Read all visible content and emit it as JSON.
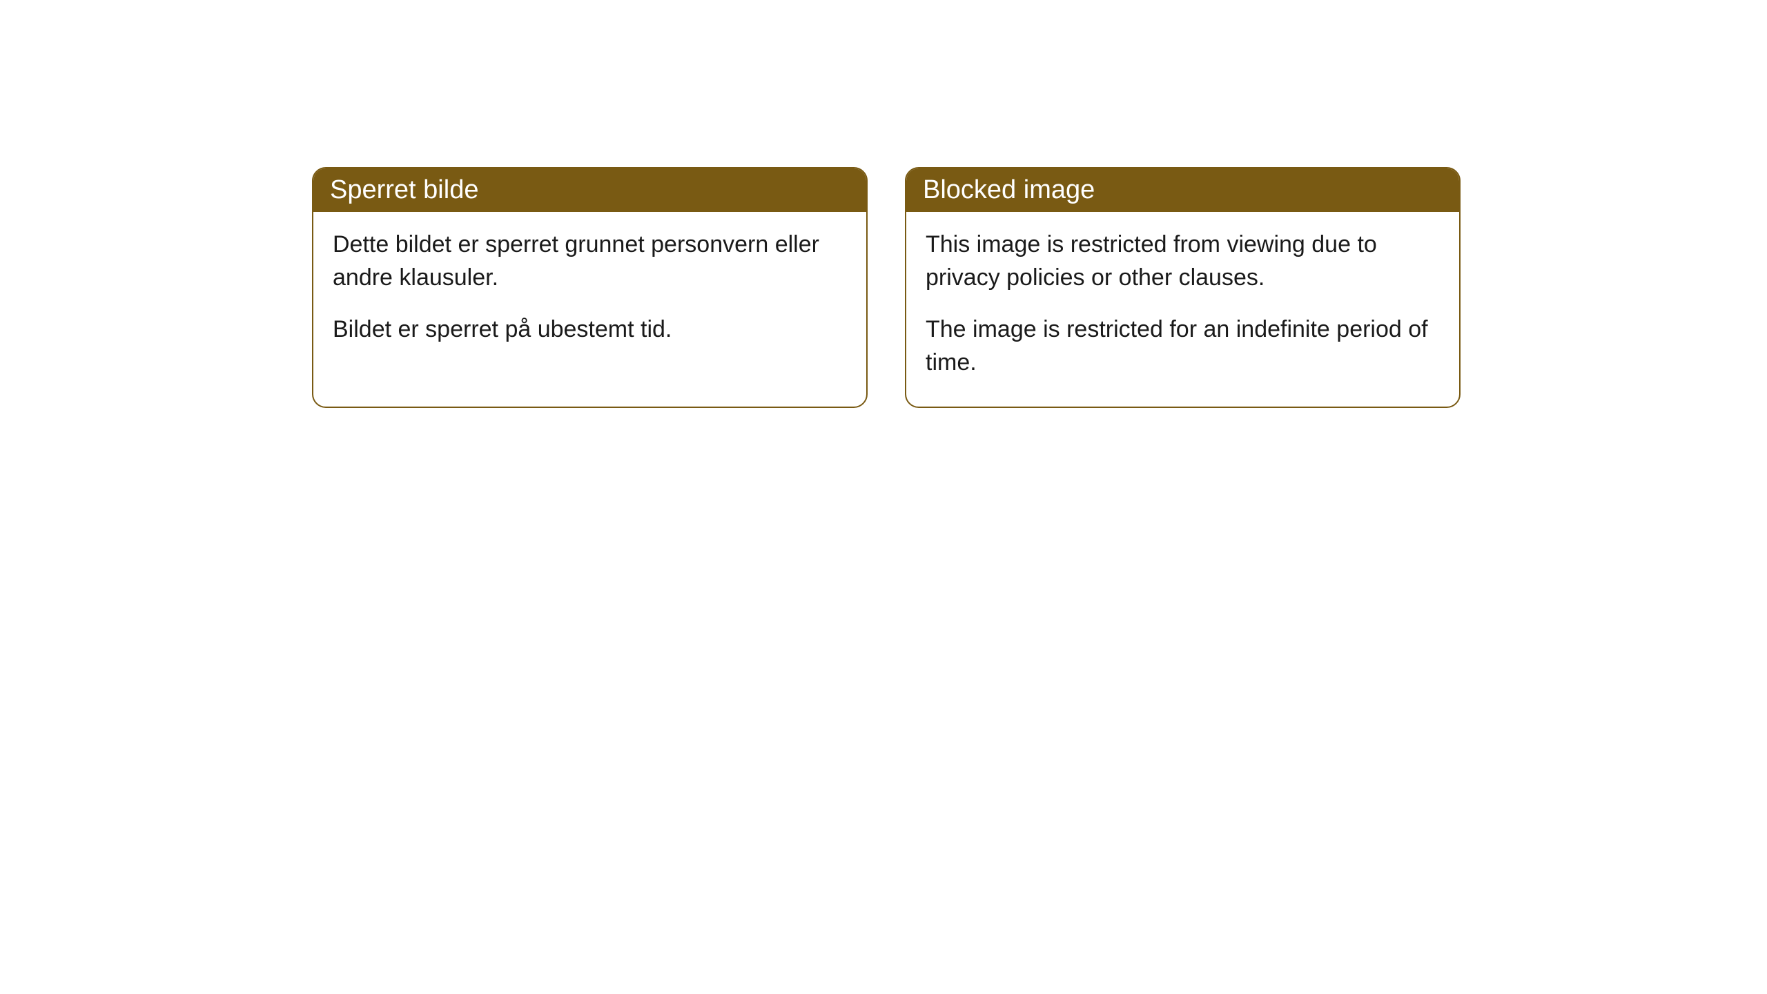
{
  "cards": [
    {
      "title": "Sperret bilde",
      "paragraph1": "Dette bildet er sperret grunnet personvern eller andre klausuler.",
      "paragraph2": "Bildet er sperret på ubestemt tid."
    },
    {
      "title": "Blocked image",
      "paragraph1": "This image is restricted from viewing due to privacy policies or other clauses.",
      "paragraph2": "The image is restricted for an indefinite period of time."
    }
  ],
  "style": {
    "header_bg_color": "#795a13",
    "header_text_color": "#ffffff",
    "border_color": "#795a13",
    "body_bg_color": "#ffffff",
    "body_text_color": "#1a1a1a",
    "border_radius": 20,
    "header_fontsize": 38,
    "body_fontsize": 34
  }
}
